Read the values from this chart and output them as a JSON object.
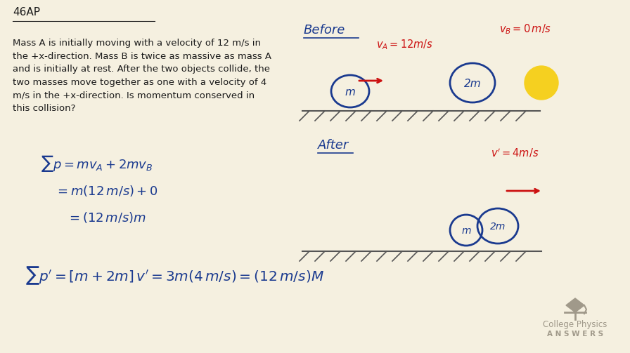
{
  "bg_color": "#f5f0e0",
  "title_text": "46AP",
  "problem_text": "Mass A is initially moving with a velocity of 12 m/s in\nthe +x-direction. Mass B is twice as massive as mass A\nand is initially at rest. After the two objects collide, the\ntwo masses move together as one with a velocity of 4\nm/s in the +x-direction. Is momentum conserved in\nthis collision?",
  "blue": "#1a3a8f",
  "red": "#cc1111",
  "text_color": "#1a1a1a",
  "logo_color": "#a0998a",
  "answers_text": "A N S W E R S"
}
